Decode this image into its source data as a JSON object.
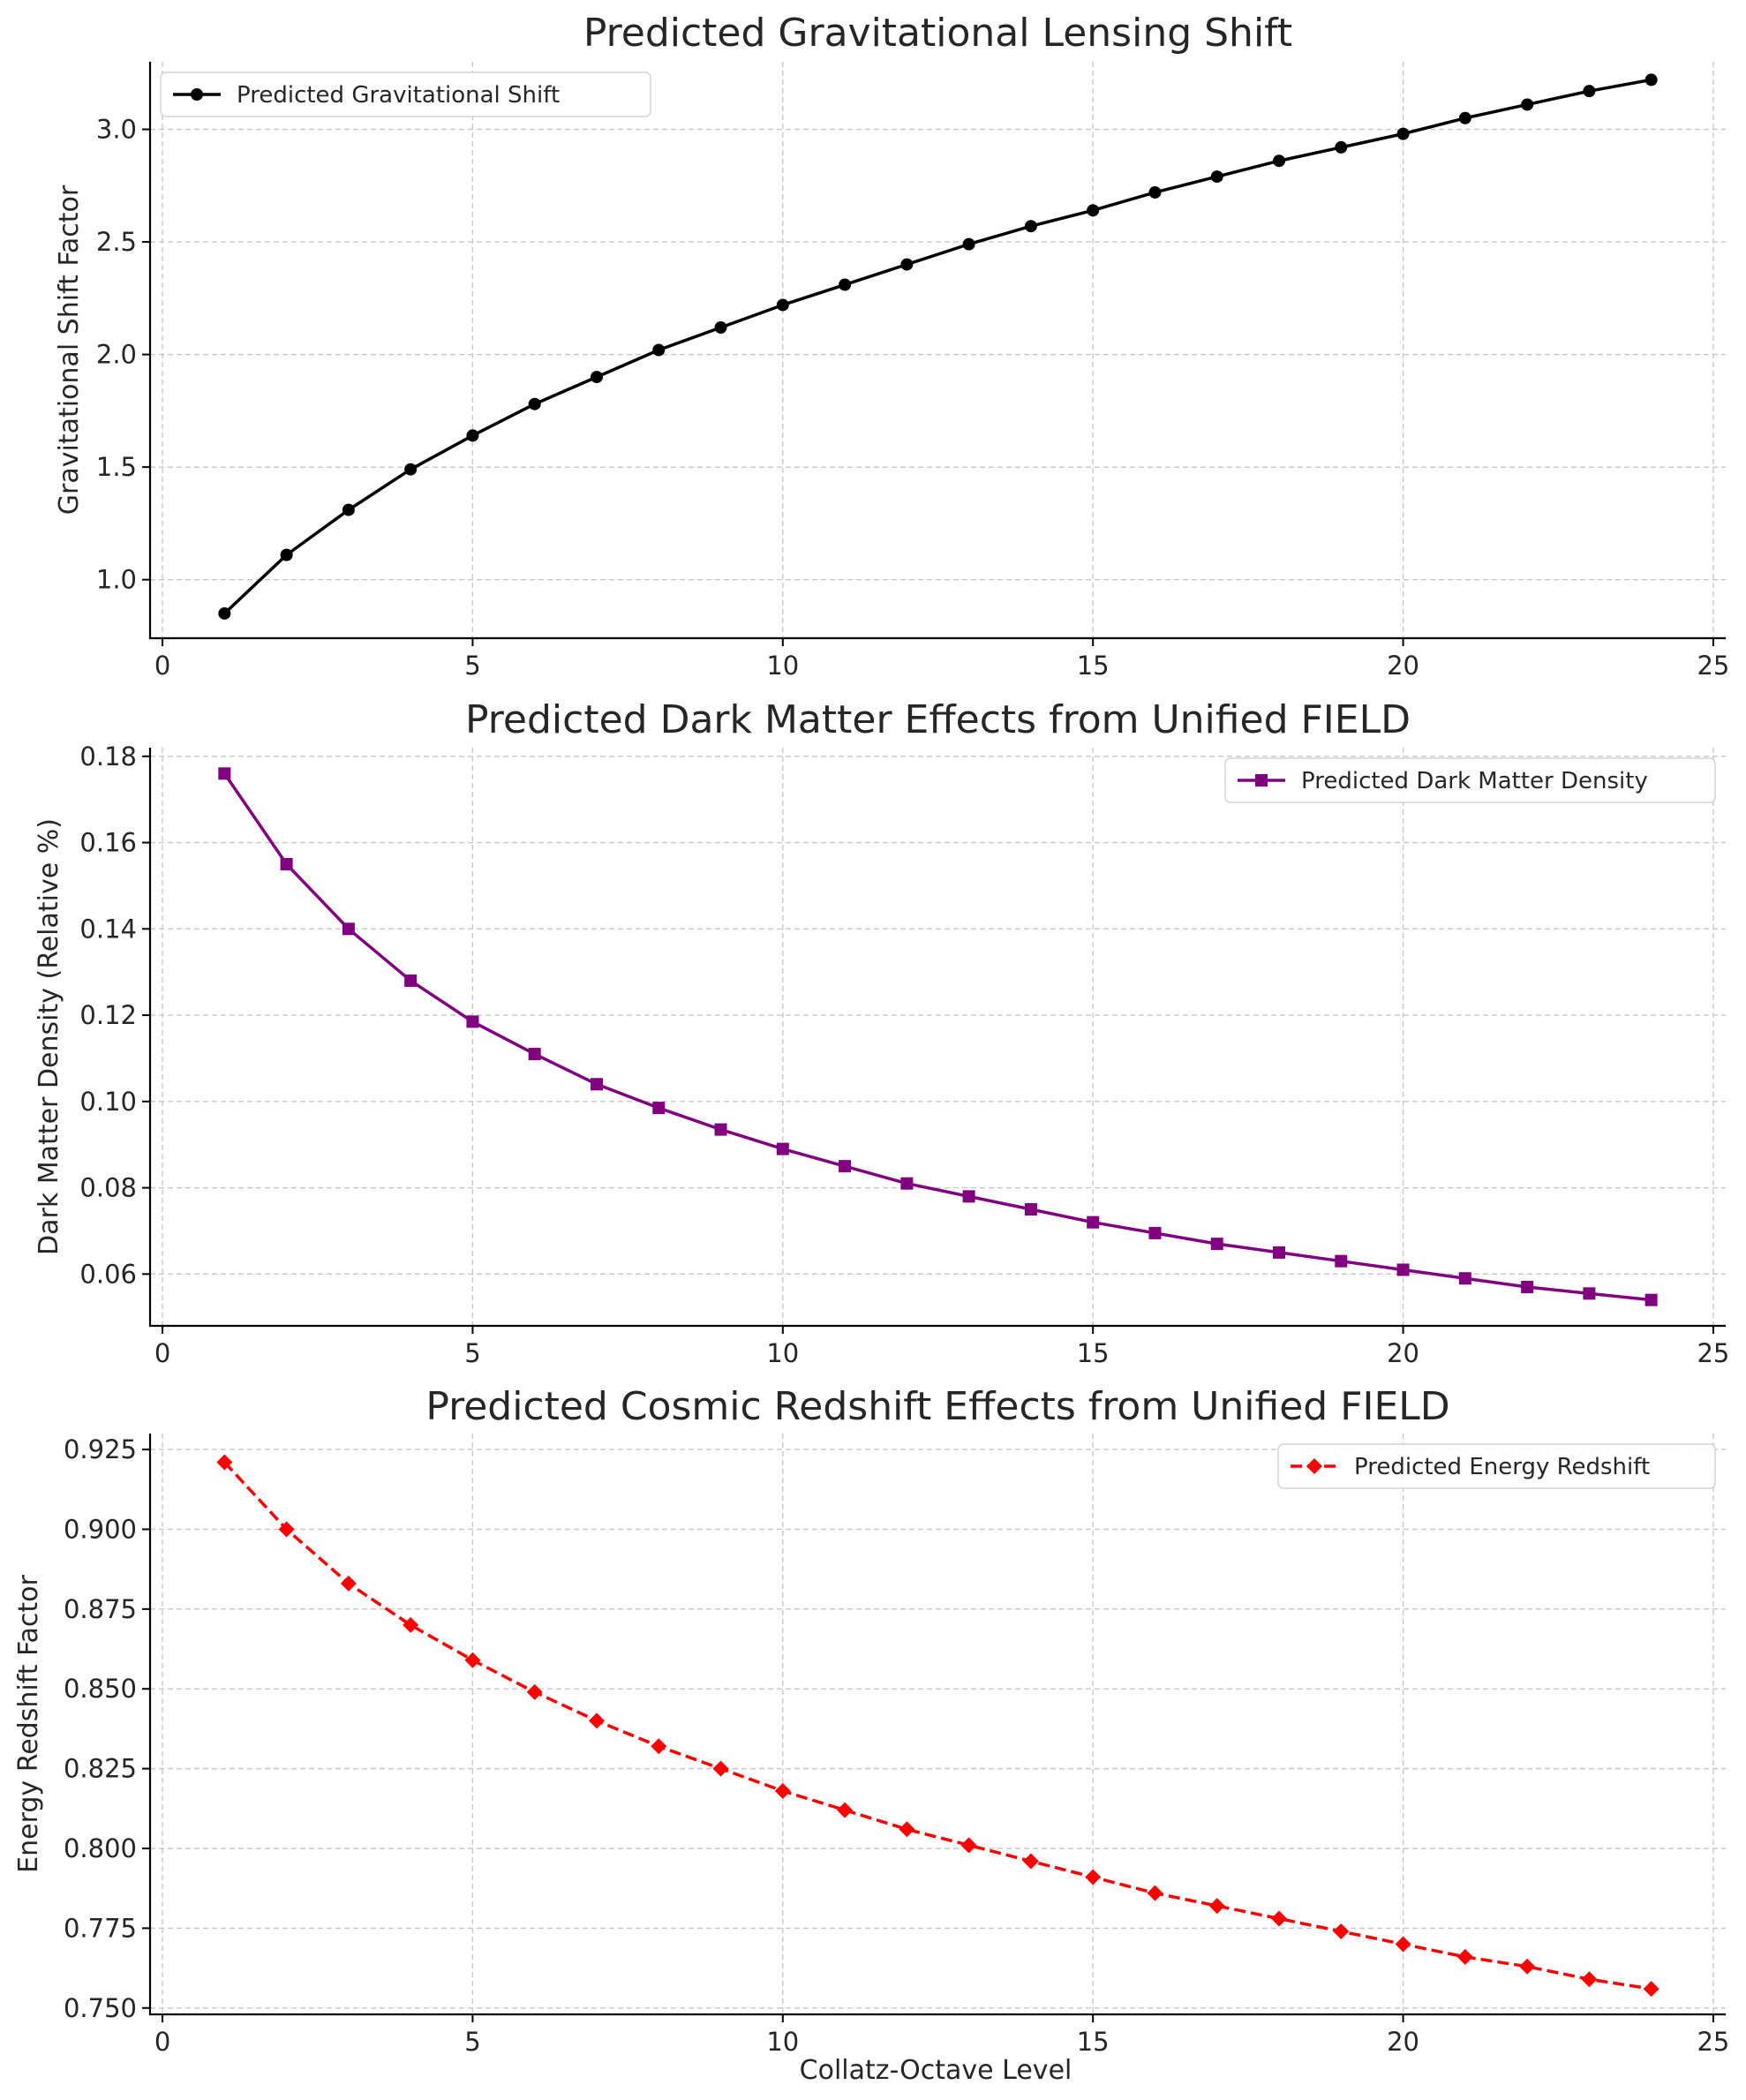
{
  "figure": {
    "xlabel": "Collatz-Octave Level"
  },
  "chart_data": [
    {
      "type": "line",
      "title": "Predicted Gravitational Lensing Shift",
      "xlabel": "",
      "ylabel": "Gravitational Shift Factor",
      "xlim": [
        -0.2,
        25.2
      ],
      "ylim": [
        0.74,
        3.3
      ],
      "xticks": [
        "0",
        "5",
        "10",
        "15",
        "20",
        "25"
      ],
      "yticks": [
        "1.0",
        "1.5",
        "2.0",
        "2.5",
        "3.0"
      ],
      "grid": true,
      "legend_position": "top-left",
      "series": [
        {
          "name": "Predicted Gravitational Shift",
          "color": "#000000",
          "marker": "circle",
          "linestyle": "solid",
          "x": [
            1,
            2,
            3,
            4,
            5,
            6,
            7,
            8,
            9,
            10,
            11,
            12,
            13,
            14,
            15,
            16,
            17,
            18,
            19,
            20,
            21,
            22,
            23,
            24
          ],
          "y": [
            0.85,
            1.11,
            1.31,
            1.49,
            1.64,
            1.78,
            1.9,
            2.02,
            2.12,
            2.22,
            2.31,
            2.4,
            2.49,
            2.57,
            2.64,
            2.72,
            2.79,
            2.86,
            2.92,
            2.98,
            3.05,
            3.11,
            3.17,
            3.22
          ]
        }
      ]
    },
    {
      "type": "line",
      "title": "Predicted Dark Matter Effects from Unified FIELD",
      "xlabel": "",
      "ylabel": "Dark Matter Density (Relative %)",
      "xlim": [
        -0.2,
        25.2
      ],
      "ylim": [
        0.048,
        0.182
      ],
      "xticks": [
        "0",
        "5",
        "10",
        "15",
        "20",
        "25"
      ],
      "yticks": [
        "0.06",
        "0.08",
        "0.10",
        "0.12",
        "0.14",
        "0.16",
        "0.18"
      ],
      "grid": true,
      "legend_position": "top-right",
      "series": [
        {
          "name": "Predicted Dark Matter Density",
          "color": "#800080",
          "marker": "square",
          "linestyle": "solid",
          "x": [
            1,
            2,
            3,
            4,
            5,
            6,
            7,
            8,
            9,
            10,
            11,
            12,
            13,
            14,
            15,
            16,
            17,
            18,
            19,
            20,
            21,
            22,
            23,
            24
          ],
          "y": [
            0.176,
            0.155,
            0.14,
            0.128,
            0.1185,
            0.111,
            0.104,
            0.0985,
            0.0935,
            0.089,
            0.085,
            0.081,
            0.078,
            0.075,
            0.072,
            0.0695,
            0.067,
            0.065,
            0.063,
            0.061,
            0.059,
            0.057,
            0.0555,
            0.054
          ]
        }
      ]
    },
    {
      "type": "line",
      "title": "Predicted Cosmic Redshift Effects from Unified FIELD",
      "xlabel": "Collatz-Octave Level",
      "ylabel": "Energy Redshift Factor",
      "xlim": [
        -0.2,
        25.2
      ],
      "ylim": [
        0.748,
        0.93
      ],
      "xticks": [
        "0",
        "5",
        "10",
        "15",
        "20",
        "25"
      ],
      "yticks": [
        "0.750",
        "0.775",
        "0.800",
        "0.825",
        "0.850",
        "0.875",
        "0.900",
        "0.925"
      ],
      "grid": true,
      "legend_position": "top-right",
      "series": [
        {
          "name": "Predicted Energy Redshift",
          "color": "#ff0000",
          "marker": "diamond",
          "linestyle": "dashed",
          "x": [
            1,
            2,
            3,
            4,
            5,
            6,
            7,
            8,
            9,
            10,
            11,
            12,
            13,
            14,
            15,
            16,
            17,
            18,
            19,
            20,
            21,
            22,
            23,
            24
          ],
          "y": [
            0.921,
            0.9,
            0.883,
            0.87,
            0.859,
            0.849,
            0.84,
            0.832,
            0.825,
            0.818,
            0.812,
            0.806,
            0.801,
            0.796,
            0.791,
            0.786,
            0.782,
            0.778,
            0.774,
            0.77,
            0.766,
            0.763,
            0.759,
            0.756
          ]
        }
      ]
    }
  ]
}
